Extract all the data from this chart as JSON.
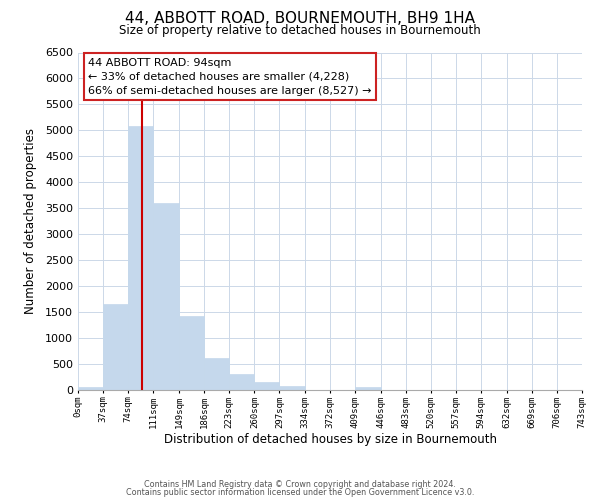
{
  "title": "44, ABBOTT ROAD, BOURNEMOUTH, BH9 1HA",
  "subtitle": "Size of property relative to detached houses in Bournemouth",
  "xlabel": "Distribution of detached houses by size in Bournemouth",
  "ylabel": "Number of detached properties",
  "bin_edges": [
    0,
    37,
    74,
    111,
    149,
    186,
    223,
    260,
    297,
    334,
    372,
    409,
    446,
    483,
    520,
    557,
    594,
    632,
    669,
    706,
    743
  ],
  "bin_counts": [
    60,
    1650,
    5080,
    3600,
    1420,
    620,
    300,
    150,
    80,
    0,
    0,
    50,
    0,
    0,
    0,
    0,
    0,
    0,
    0,
    0
  ],
  "bar_color": "#c5d8ec",
  "bar_edge_color": "#c5d8ec",
  "vline_x": 94,
  "vline_color": "#cc0000",
  "ylim": [
    0,
    6500
  ],
  "yticks": [
    0,
    500,
    1000,
    1500,
    2000,
    2500,
    3000,
    3500,
    4000,
    4500,
    5000,
    5500,
    6000,
    6500
  ],
  "annotation_title": "44 ABBOTT ROAD: 94sqm",
  "annotation_line1": "← 33% of detached houses are smaller (4,228)",
  "annotation_line2": "66% of semi-detached houses are larger (8,527) →",
  "footer1": "Contains HM Land Registry data © Crown copyright and database right 2024.",
  "footer2": "Contains public sector information licensed under the Open Government Licence v3.0.",
  "tick_labels": [
    "0sqm",
    "37sqm",
    "74sqm",
    "111sqm",
    "149sqm",
    "186sqm",
    "223sqm",
    "260sqm",
    "297sqm",
    "334sqm",
    "372sqm",
    "409sqm",
    "446sqm",
    "483sqm",
    "520sqm",
    "557sqm",
    "594sqm",
    "632sqm",
    "669sqm",
    "706sqm",
    "743sqm"
  ],
  "background_color": "#ffffff",
  "grid_color": "#ccd8e8"
}
